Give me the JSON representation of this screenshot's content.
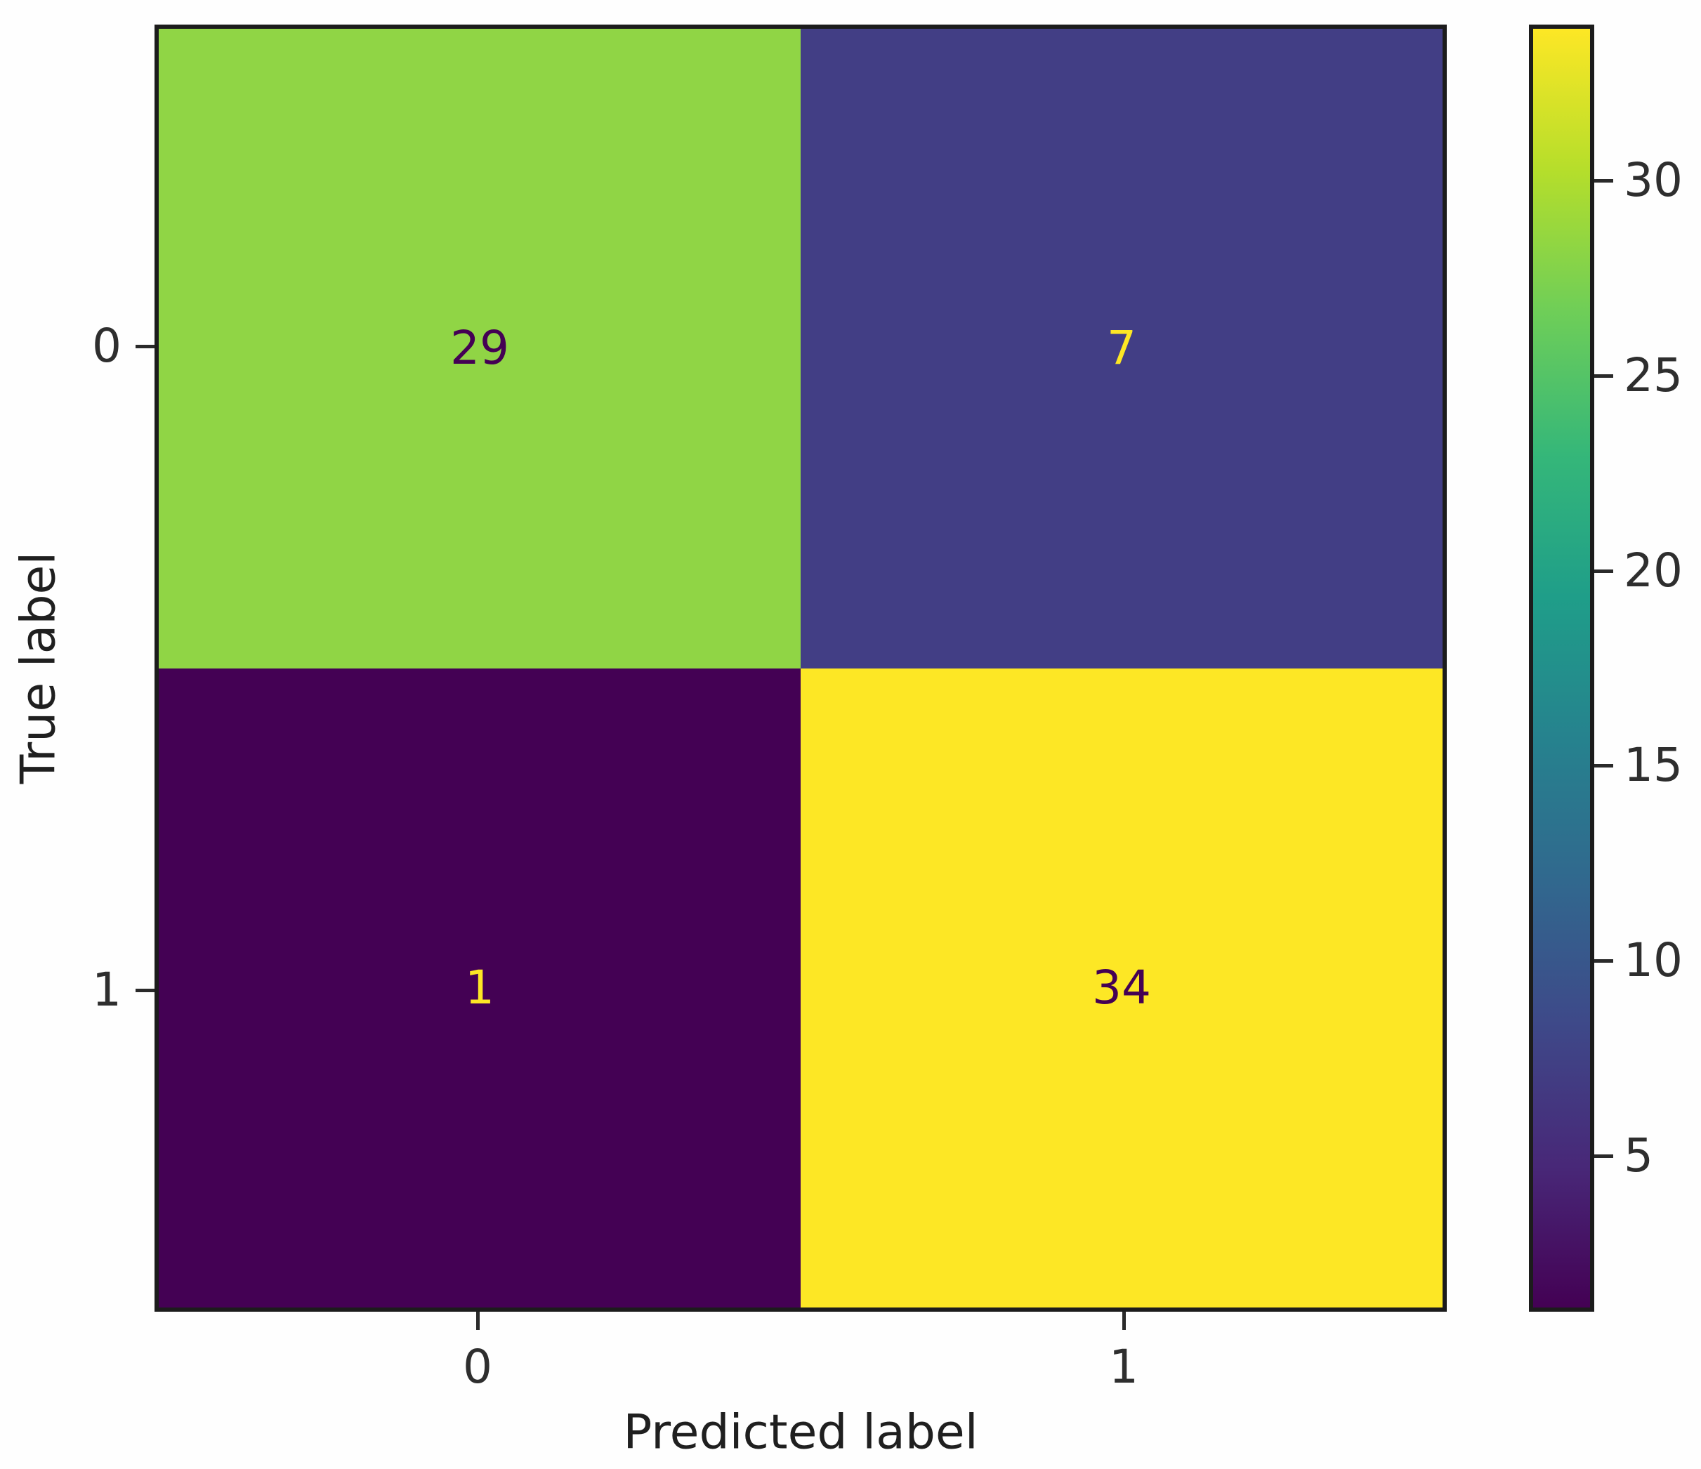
{
  "chart_data": {
    "type": "heatmap",
    "subtype": "confusion-matrix",
    "title": "",
    "xlabel": "Predicted label",
    "ylabel": "True label",
    "x_tick_labels": [
      "0",
      "1"
    ],
    "y_tick_labels": [
      "0",
      "1"
    ],
    "matrix": [
      [
        29,
        7
      ],
      [
        1,
        34
      ]
    ],
    "cell_colors": [
      [
        "#90d545",
        "#423e85"
      ],
      [
        "#440154",
        "#fde725"
      ]
    ],
    "cell_text_colors": [
      [
        "#440154",
        "#fde725"
      ],
      [
        "#fde725",
        "#440154"
      ]
    ],
    "colormap": "viridis",
    "vmin": 1,
    "vmax": 34,
    "grid": false,
    "colorbar": {
      "position": "right",
      "tick_values": [
        5,
        10,
        15,
        20,
        25,
        30
      ],
      "tick_labels": [
        "5",
        "10",
        "15",
        "20",
        "25",
        "30"
      ],
      "gradient_stops_bottom_to_top": [
        "#440154",
        "#482878",
        "#3e4989",
        "#31688e",
        "#26828e",
        "#1f9e89",
        "#35b779",
        "#6ece58",
        "#b5de2b",
        "#fde725"
      ]
    }
  },
  "colors": {
    "background": "#fefefe",
    "spine": "#1c1c1c",
    "tick": "#2a2a2a",
    "tick_label_text": "#2e2e2e",
    "axis_label_text": "#1f1f1f"
  }
}
